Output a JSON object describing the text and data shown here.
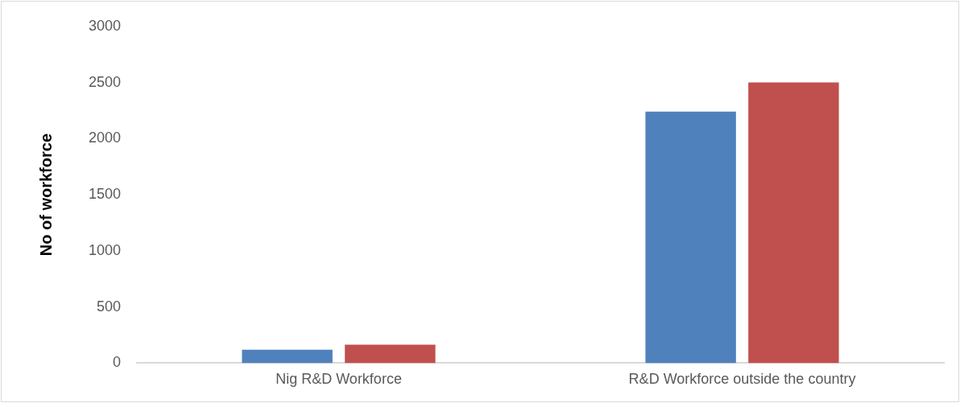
{
  "chart_data": {
    "type": "bar",
    "ylabel": "No of workforce",
    "categories": [
      "Nig R&D Workforce",
      "R&D Workforce outside the country"
    ],
    "series": [
      {
        "color": "#4f81bd",
        "values": [
          120,
          2240
        ]
      },
      {
        "color": "#c0504d",
        "values": [
          165,
          2500
        ]
      }
    ],
    "ylim": [
      0,
      3000
    ],
    "yticks": [
      0,
      500,
      1000,
      1500,
      2000,
      2500,
      3000
    ],
    "grid": false,
    "legend": false
  }
}
